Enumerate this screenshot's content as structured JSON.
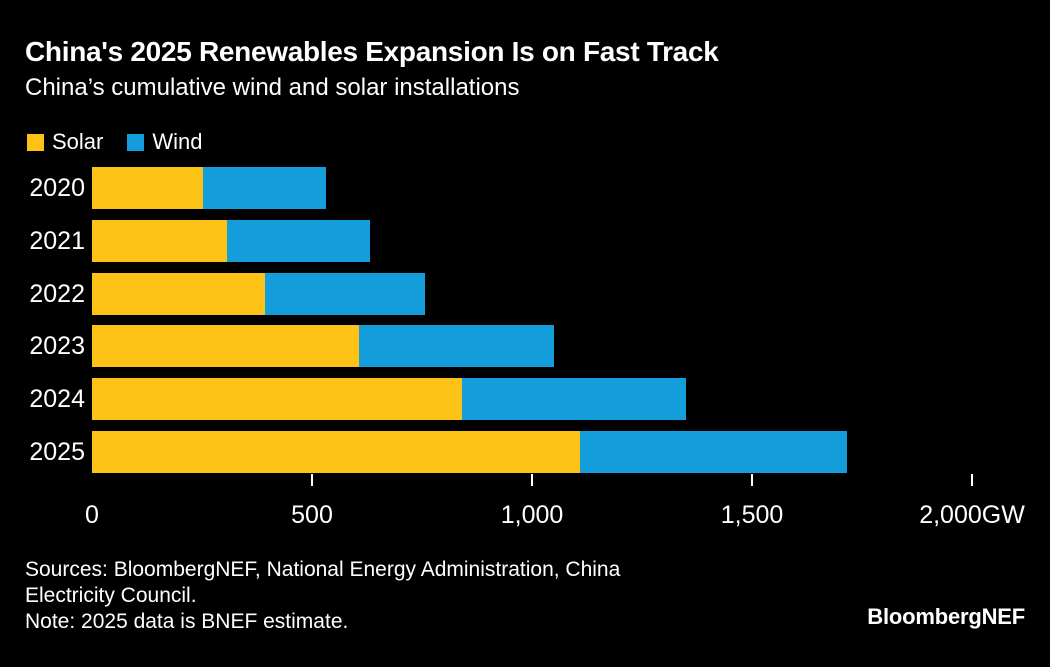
{
  "title": "China's 2025 Renewables Expansion Is on Fast Track",
  "subtitle": "China’s cumulative wind and solar installations",
  "colors": {
    "background": "#000000",
    "text": "#ffffff",
    "solar": "#FCC216",
    "wind": "#149DDB",
    "tick": "#ffffff"
  },
  "chart_data": {
    "type": "bar",
    "orientation": "horizontal",
    "stacked": true,
    "grid": false,
    "legend_position": "top-left",
    "unit": "GW",
    "categories": [
      "2020",
      "2021",
      "2022",
      "2023",
      "2024",
      "2025"
    ],
    "series": [
      {
        "name": "Solar",
        "color": "#FCC216",
        "values": [
          253,
          306,
          393,
          607,
          840,
          1110
        ]
      },
      {
        "name": "Wind",
        "color": "#149DDB",
        "values": [
          280,
          327,
          364,
          442,
          510,
          605
        ]
      }
    ],
    "totals": [
      533,
      633,
      757,
      1049,
      1350,
      1715
    ],
    "xlim": [
      0,
      2000
    ],
    "x_ticks": [
      {
        "value": 0,
        "label": "0",
        "tick_mark": false
      },
      {
        "value": 500,
        "label": "500",
        "tick_mark": true
      },
      {
        "value": 1000,
        "label": "1,000",
        "tick_mark": true
      },
      {
        "value": 1500,
        "label": "1,500",
        "tick_mark": true
      },
      {
        "value": 2000,
        "label": "2,000GW",
        "tick_mark": true
      }
    ]
  },
  "footer": {
    "lines": [
      "Sources: BloombergNEF, National Energy Administration, China",
      "Electricity Council.",
      "Note: 2025 data is BNEF estimate."
    ]
  },
  "logo_text": "BloombergNEF"
}
